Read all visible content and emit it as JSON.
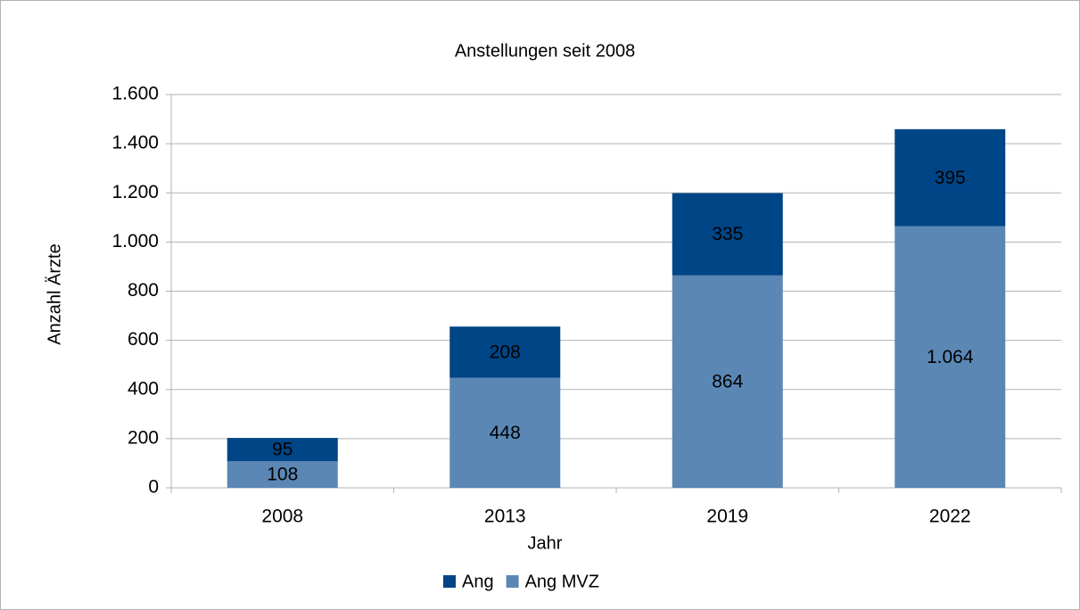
{
  "chart_data": {
    "type": "stacked_bar",
    "title": "Anstellungen seit 2008",
    "x_label": "Jahr",
    "y_label": "Anzahl Ärzte",
    "categories": [
      "2008",
      "2013",
      "2019",
      "2022"
    ],
    "series": [
      {
        "name": "Ang",
        "color": "#004586",
        "values": [
          95,
          208,
          335,
          395
        ]
      },
      {
        "name": "Ang MVZ",
        "color": "#5b87b5",
        "values": [
          108,
          448,
          864,
          1064
        ],
        "value_labels": [
          "108",
          "448",
          "864",
          "1.064"
        ]
      }
    ],
    "ylim": [
      0,
      1600
    ],
    "yticks": [
      0,
      200,
      400,
      600,
      800,
      {
        "value": 1000,
        "label": "1.000"
      },
      {
        "value": 1200,
        "label": "1.200"
      },
      {
        "value": 1400,
        "label": "1.400"
      },
      {
        "value": 1600,
        "label": "1.600"
      }
    ],
    "grid": true,
    "legend": "bottom"
  }
}
